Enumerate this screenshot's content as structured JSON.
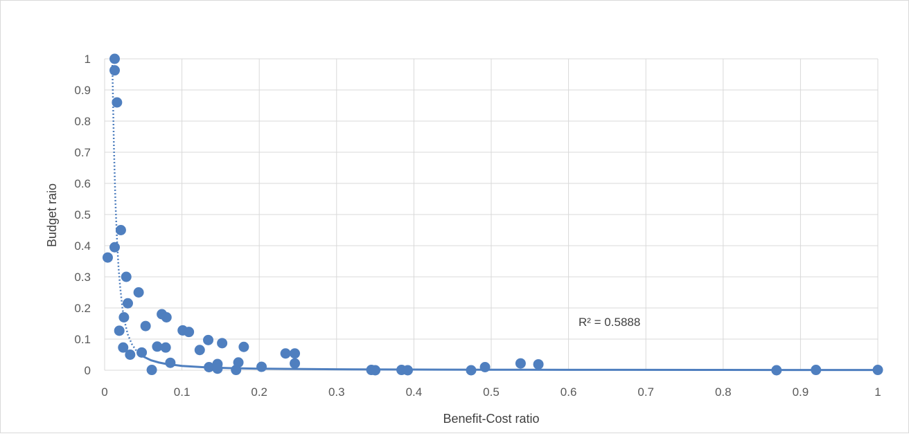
{
  "chart_data": {
    "type": "scatter",
    "title": "",
    "xlabel": "Benefit-Cost ratio",
    "ylabel": "Budget raio",
    "xlim": [
      0,
      1
    ],
    "ylim": [
      0,
      1
    ],
    "x_ticks": [
      "0",
      "0.1",
      "0.2",
      "0.3",
      "0.4",
      "0.5",
      "0.6",
      "0.7",
      "0.8",
      "0.9",
      "1"
    ],
    "y_ticks": [
      "0",
      "0.1",
      "0.2",
      "0.3",
      "0.4",
      "0.5",
      "0.6",
      "0.7",
      "0.8",
      "0.9",
      "1"
    ],
    "grid": true,
    "legend": "none",
    "marker_color": "#4f7fbf",
    "trendline": {
      "type": "power",
      "style": "dotted-then-solid",
      "color": "#4f7fbf",
      "points": [
        [
          0.01,
          0.98
        ],
        [
          0.012,
          0.72
        ],
        [
          0.014,
          0.54
        ],
        [
          0.016,
          0.42
        ],
        [
          0.018,
          0.33
        ],
        [
          0.02,
          0.27
        ],
        [
          0.023,
          0.2
        ],
        [
          0.026,
          0.155
        ],
        [
          0.03,
          0.115
        ],
        [
          0.035,
          0.085
        ],
        [
          0.04,
          0.066
        ],
        [
          0.05,
          0.044
        ],
        [
          0.06,
          0.032
        ],
        [
          0.07,
          0.025
        ],
        [
          0.08,
          0.02
        ],
        [
          0.1,
          0.014
        ],
        [
          0.13,
          0.0095
        ],
        [
          0.16,
          0.007
        ],
        [
          0.2,
          0.005
        ],
        [
          0.3,
          0.003
        ],
        [
          0.4,
          0.0022
        ],
        [
          0.5,
          0.0017
        ],
        [
          0.6,
          0.0014
        ],
        [
          0.8,
          0.001
        ],
        [
          1.0,
          0.0008
        ]
      ],
      "r_squared_label": "R² = 0.5888"
    },
    "series": [
      {
        "points": [
          [
            0.013,
            1.0
          ],
          [
            0.013,
            0.963
          ],
          [
            0.016,
            0.86
          ],
          [
            0.021,
            0.45
          ],
          [
            0.013,
            0.395
          ],
          [
            0.004,
            0.362
          ],
          [
            0.028,
            0.3
          ],
          [
            0.044,
            0.25
          ],
          [
            0.03,
            0.215
          ],
          [
            0.025,
            0.17
          ],
          [
            0.074,
            0.18
          ],
          [
            0.08,
            0.17
          ],
          [
            0.053,
            0.142
          ],
          [
            0.019,
            0.127
          ],
          [
            0.101,
            0.128
          ],
          [
            0.109,
            0.123
          ],
          [
            0.024,
            0.073
          ],
          [
            0.033,
            0.05
          ],
          [
            0.048,
            0.057
          ],
          [
            0.068,
            0.076
          ],
          [
            0.079,
            0.073
          ],
          [
            0.085,
            0.024
          ],
          [
            0.061,
            0.001
          ],
          [
            0.123,
            0.065
          ],
          [
            0.134,
            0.097
          ],
          [
            0.152,
            0.087
          ],
          [
            0.18,
            0.075
          ],
          [
            0.135,
            0.01
          ],
          [
            0.146,
            0.02
          ],
          [
            0.146,
            0.005
          ],
          [
            0.173,
            0.025
          ],
          [
            0.17,
            0.001
          ],
          [
            0.203,
            0.011
          ],
          [
            0.234,
            0.054
          ],
          [
            0.246,
            0.054
          ],
          [
            0.246,
            0.022
          ],
          [
            0.345,
            0.001
          ],
          [
            0.35,
            0.0
          ],
          [
            0.384,
            0.001
          ],
          [
            0.392,
            0.0
          ],
          [
            0.474,
            0.0
          ],
          [
            0.492,
            0.01
          ],
          [
            0.538,
            0.022
          ],
          [
            0.561,
            0.019
          ],
          [
            0.869,
            0.0
          ],
          [
            0.92,
            0.001
          ],
          [
            1.0,
            0.001
          ]
        ]
      }
    ]
  }
}
